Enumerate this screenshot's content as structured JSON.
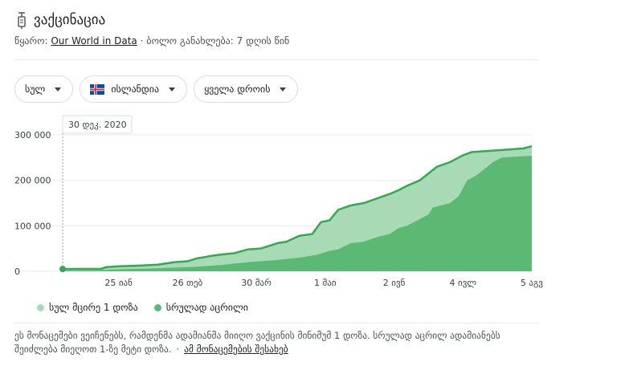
{
  "header": {
    "title": "ვაქცინაცია",
    "source_prefix": "წყარო: ",
    "source_link": "Our World in Data",
    "source_sep": " · ",
    "updated": "ბოლო განახლება: 7 დღის წინ"
  },
  "filters": [
    {
      "label": "სულ"
    },
    {
      "label": "ისლანდია"
    },
    {
      "label": "ყველა დროის"
    }
  ],
  "tooltip": {
    "date": "30 დეკ. 2020"
  },
  "legend": [
    {
      "label": "სულ მცირე 1 დოზა",
      "color": "#a8dab5"
    },
    {
      "label": "სრულად აცრილი",
      "color": "#5bb974"
    }
  ],
  "note": {
    "text_line1": "ეს მონაცემები ვეიჩენებს, რამდენმა ადამიანმა მიიღო ვაქცინის მინიმუმ 1 დოზა. სრულად აცრილ ადამიანებს",
    "text_line2": "შეიძლება მიეღოთ 1-ზე მეტი დოზა.",
    "sep": "·",
    "link": "ამ მონაცემების შესახებ"
  },
  "colors": {
    "dose_line": "#34a853",
    "dose_fill": "#a8dab5",
    "full_fill": "#5bb974",
    "grid": "#e8eaed"
  },
  "chart_data": {
    "type": "area",
    "y_ticks": [
      {
        "value": 0,
        "label": "0"
      },
      {
        "value": 100000,
        "label": "100 000"
      },
      {
        "value": 200000,
        "label": "200 000"
      },
      {
        "value": 300000,
        "label": "300 000"
      }
    ],
    "ylim": [
      0,
      300000
    ],
    "xlim": [
      0,
      218
    ],
    "x_ticks": [
      {
        "x": 26,
        "label": "25 იან"
      },
      {
        "x": 58,
        "label": "26 თებ"
      },
      {
        "x": 90,
        "label": "30 მარ"
      },
      {
        "x": 122,
        "label": "1 მაი"
      },
      {
        "x": 154,
        "label": "2 ივნ"
      },
      {
        "x": 186,
        "label": "4 ივლ"
      },
      {
        "x": 218,
        "label": "5 აგვ"
      }
    ],
    "series": [
      {
        "name": "სულ მცირე 1 დოზა",
        "points": [
          [
            0,
            5000
          ],
          [
            18,
            5500
          ],
          [
            20,
            9000
          ],
          [
            26,
            11000
          ],
          [
            32,
            12000
          ],
          [
            38,
            13000
          ],
          [
            44,
            14500
          ],
          [
            52,
            20000
          ],
          [
            58,
            22000
          ],
          [
            62,
            28000
          ],
          [
            68,
            33000
          ],
          [
            74,
            37000
          ],
          [
            80,
            40000
          ],
          [
            86,
            48000
          ],
          [
            92,
            50000
          ],
          [
            96,
            56000
          ],
          [
            100,
            62000
          ],
          [
            104,
            65000
          ],
          [
            110,
            78000
          ],
          [
            116,
            82000
          ],
          [
            120,
            108000
          ],
          [
            124,
            112000
          ],
          [
            128,
            135000
          ],
          [
            134,
            145000
          ],
          [
            140,
            150000
          ],
          [
            146,
            160000
          ],
          [
            152,
            170000
          ],
          [
            156,
            178000
          ],
          [
            160,
            188000
          ],
          [
            166,
            200000
          ],
          [
            170,
            215000
          ],
          [
            174,
            230000
          ],
          [
            180,
            240000
          ],
          [
            186,
            255000
          ],
          [
            190,
            262000
          ],
          [
            196,
            264000
          ],
          [
            202,
            266000
          ],
          [
            208,
            268000
          ],
          [
            214,
            270000
          ],
          [
            218,
            275000
          ]
        ]
      },
      {
        "name": "სრულად აცრილი",
        "points": [
          [
            0,
            2000
          ],
          [
            20,
            3000
          ],
          [
            30,
            5000
          ],
          [
            40,
            6000
          ],
          [
            52,
            8000
          ],
          [
            62,
            10000
          ],
          [
            74,
            14000
          ],
          [
            86,
            20000
          ],
          [
            98,
            24000
          ],
          [
            110,
            30000
          ],
          [
            118,
            36000
          ],
          [
            124,
            45000
          ],
          [
            128,
            48000
          ],
          [
            134,
            62000
          ],
          [
            140,
            65000
          ],
          [
            146,
            75000
          ],
          [
            152,
            82000
          ],
          [
            156,
            95000
          ],
          [
            160,
            100000
          ],
          [
            166,
            115000
          ],
          [
            170,
            125000
          ],
          [
            172,
            140000
          ],
          [
            180,
            150000
          ],
          [
            184,
            165000
          ],
          [
            188,
            200000
          ],
          [
            192,
            210000
          ],
          [
            196,
            225000
          ],
          [
            200,
            240000
          ],
          [
            204,
            250000
          ],
          [
            210,
            252000
          ],
          [
            218,
            254000
          ]
        ]
      }
    ]
  }
}
